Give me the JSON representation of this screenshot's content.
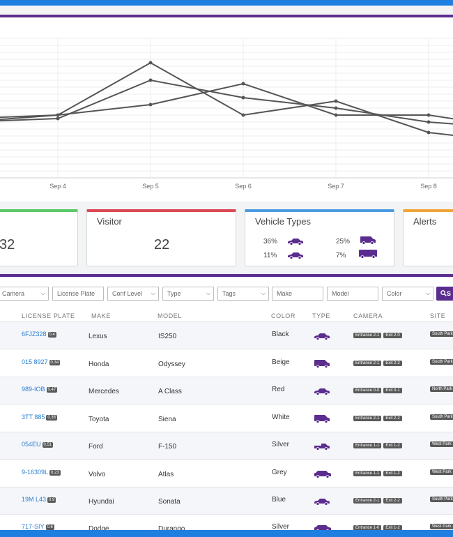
{
  "chart_data": {
    "type": "line",
    "x": [
      "Sep 4",
      "Sep 5",
      "Sep 6",
      "Sep 7",
      "Sep 8"
    ],
    "tick_labels": [
      "Sep 4",
      "Sep 5",
      "Sep 6",
      "Sep 7",
      "Sep 8"
    ],
    "series": [
      {
        "values": [
          18,
          33,
          18,
          22,
          13
        ]
      },
      {
        "values": [
          17,
          28,
          23,
          20,
          16
        ]
      },
      {
        "values": [
          18,
          21,
          27,
          18,
          18
        ]
      }
    ],
    "ylim": [
      0,
      40
    ],
    "grid": true,
    "line_color": "#555555"
  },
  "cards": {
    "residents": {
      "value": "32"
    },
    "visitor": {
      "title": "Visitor",
      "value": "22"
    },
    "vehicle_types": {
      "title": "Vehicle Types",
      "items": [
        {
          "pct": "36%",
          "icon": "sedan-icon"
        },
        {
          "pct": "25%",
          "icon": "van-icon"
        },
        {
          "pct": "11%",
          "icon": "sedan-icon"
        },
        {
          "pct": "7%",
          "icon": "truck-icon"
        }
      ]
    },
    "alerts": {
      "title": "Alerts"
    },
    "colors": {
      "green": "#5cc96a",
      "red": "#dc4a55",
      "blue": "#4a9be0",
      "orange": "#f0a53a"
    }
  },
  "filters": {
    "camera": "Camera",
    "license_plate": "License Plate",
    "conf_level": "Conf Level",
    "type": "Type",
    "tags": "Tags",
    "make": "Make",
    "model": "Model",
    "color": "Color",
    "search": "S"
  },
  "table": {
    "headers": {
      "plate": "LICENSE PLATE",
      "make": "MAKE",
      "model": "MODEL",
      "color": "COLOR",
      "type": "TYPE",
      "camera": "CAMERA",
      "site": "SITE"
    },
    "rows": [
      {
        "plate": "6FJZ328",
        "conf": "0.4",
        "make": "Lexus",
        "model": "IS250",
        "color": "Black",
        "type": "sedan-icon",
        "cam1": "Entrance 2-1",
        "cam2": "Exit 2-0",
        "site": "South Park"
      },
      {
        "plate": "015 8927",
        "conf": "0.34",
        "make": "Honda",
        "model": "Odyssey",
        "color": "Beige",
        "type": "van-icon",
        "cam1": "Entrance 2-1",
        "cam2": "Exit 2-2",
        "site": "South Park"
      },
      {
        "plate": "989-IOB",
        "conf": "0.47",
        "make": "Mercedes",
        "model": "A Class",
        "color": "Red",
        "type": "sedan-icon",
        "cam1": "Entrance 0-0",
        "cam2": "Exit 0-1",
        "site": "North Park"
      },
      {
        "plate": "3TT 885",
        "conf": "0.35",
        "make": "Toyota",
        "model": "Siena",
        "color": "White",
        "type": "van-icon",
        "cam1": "Entrance 2-1",
        "cam2": "Exit 2-2",
        "site": "South Park"
      },
      {
        "plate": "054EU",
        "conf": "0.51",
        "make": "Ford",
        "model": "F-150",
        "color": "Silver",
        "type": "pickup-icon",
        "cam1": "Entrance 1-1",
        "cam2": "Exit 1-2",
        "site": "West Park"
      },
      {
        "plate": "9-16309L",
        "conf": "0.23",
        "make": "Volvo",
        "model": "Atlas",
        "color": "Grey",
        "type": "suv-icon",
        "cam1": "Entrance 1-1",
        "cam2": "Exit 1-2",
        "site": "West Park"
      },
      {
        "plate": "19M L43",
        "conf": "0.9",
        "make": "Hyundai",
        "model": "Sonata",
        "color": "Blue",
        "type": "sedan-icon",
        "cam1": "Entrance 2-1",
        "cam2": "Exit 2-2",
        "site": "South Park"
      },
      {
        "plate": "717-SIY",
        "conf": "0.6",
        "make": "Dodge",
        "model": "Durango",
        "color": "Silver",
        "type": "suv-icon",
        "cam1": "Entrance 1-0",
        "cam2": "Exit 1-2",
        "site": "West Park"
      }
    ]
  },
  "accent": "#5b2d8e"
}
